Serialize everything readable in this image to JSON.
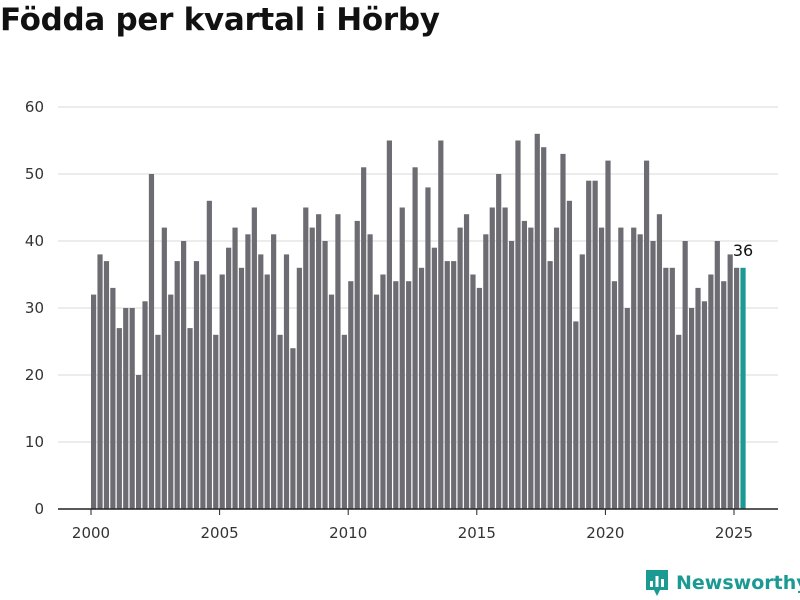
{
  "title": "Födda per kvartal i Hörby",
  "brand": {
    "name": "Newsworthy",
    "color": "#1a9a93",
    "icon": "bar-chart-icon"
  },
  "chart_data": {
    "type": "bar",
    "title": "Födda per kvartal i Hörby",
    "xlabel": "",
    "ylabel": "",
    "ylim": [
      0,
      60
    ],
    "yticks": [
      0,
      10,
      20,
      30,
      40,
      50,
      60
    ],
    "xticks": [
      "2000",
      "2005",
      "2010",
      "2015",
      "2020",
      "2025"
    ],
    "grid": true,
    "legend": "none",
    "colors": {
      "bar": "#6d6c72",
      "highlight": "#1a9a93",
      "grid": "#d9d9d9"
    },
    "categories": [
      "2000Q1",
      "2000Q2",
      "2000Q3",
      "2000Q4",
      "2001Q1",
      "2001Q2",
      "2001Q3",
      "2001Q4",
      "2002Q1",
      "2002Q2",
      "2002Q3",
      "2002Q4",
      "2003Q1",
      "2003Q2",
      "2003Q3",
      "2003Q4",
      "2004Q1",
      "2004Q2",
      "2004Q3",
      "2004Q4",
      "2005Q1",
      "2005Q2",
      "2005Q3",
      "2005Q4",
      "2006Q1",
      "2006Q2",
      "2006Q3",
      "2006Q4",
      "2007Q1",
      "2007Q2",
      "2007Q3",
      "2007Q4",
      "2008Q1",
      "2008Q2",
      "2008Q3",
      "2008Q4",
      "2009Q1",
      "2009Q2",
      "2009Q3",
      "2009Q4",
      "2010Q1",
      "2010Q2",
      "2010Q3",
      "2010Q4",
      "2011Q1",
      "2011Q2",
      "2011Q3",
      "2011Q4",
      "2012Q1",
      "2012Q2",
      "2012Q3",
      "2012Q4",
      "2013Q1",
      "2013Q2",
      "2013Q3",
      "2013Q4",
      "2014Q1",
      "2014Q2",
      "2014Q3",
      "2014Q4",
      "2015Q1",
      "2015Q2",
      "2015Q3",
      "2015Q4",
      "2016Q1",
      "2016Q2",
      "2016Q3",
      "2016Q4",
      "2017Q1",
      "2017Q2",
      "2017Q3",
      "2017Q4",
      "2018Q1",
      "2018Q2",
      "2018Q3",
      "2018Q4",
      "2019Q1",
      "2019Q2",
      "2019Q3",
      "2019Q4",
      "2020Q1",
      "2020Q2",
      "2020Q3",
      "2020Q4",
      "2021Q1",
      "2021Q2",
      "2021Q3",
      "2021Q4",
      "2022Q1",
      "2022Q2",
      "2022Q3",
      "2022Q4",
      "2023Q1",
      "2023Q2",
      "2023Q3",
      "2023Q4",
      "2024Q1",
      "2024Q2",
      "2024Q3",
      "2024Q4",
      "2025Q1",
      "2025Q2"
    ],
    "values": [
      32,
      38,
      37,
      33,
      27,
      30,
      30,
      20,
      31,
      50,
      26,
      42,
      32,
      37,
      40,
      27,
      37,
      35,
      46,
      26,
      35,
      39,
      42,
      36,
      41,
      45,
      38,
      35,
      41,
      26,
      38,
      24,
      36,
      45,
      42,
      44,
      40,
      32,
      44,
      26,
      34,
      43,
      51,
      41,
      32,
      35,
      55,
      34,
      45,
      34,
      51,
      36,
      48,
      39,
      55,
      37,
      37,
      42,
      44,
      35,
      33,
      41,
      45,
      50,
      45,
      40,
      55,
      43,
      42,
      56,
      54,
      37,
      42,
      53,
      46,
      28,
      38,
      49,
      49,
      42,
      52,
      34,
      42,
      30,
      42,
      41,
      52,
      40,
      44,
      36,
      36,
      26,
      40,
      30,
      33,
      31,
      35,
      40,
      34,
      38,
      36,
      36
    ],
    "highlight_index": 101,
    "highlight_label": "36"
  }
}
